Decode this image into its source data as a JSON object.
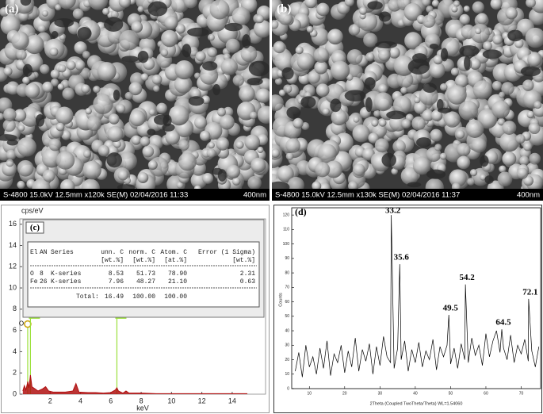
{
  "sem_images": [
    {
      "label": "(a)",
      "info": "S-4800 15.0kV 12.5mm x120k SE(M) 02/04/2016 11:33",
      "scale": "400nm"
    },
    {
      "label": "(b)",
      "info": "S-4800 15.0kV 12.5mm x130k SE(M) 02/04/2016 11:37",
      "scale": "400nm"
    }
  ],
  "chart_data": [
    {
      "type": "area",
      "panel_label": "(c)",
      "ylabel": "cps/eV",
      "xlabel": "keV",
      "color": "#b01010",
      "x": [
        0.2,
        0.3,
        0.4,
        0.5,
        0.52,
        0.6,
        0.7,
        0.8,
        1.0,
        1.2,
        1.5,
        1.7,
        1.9,
        2.2,
        2.5,
        3.0,
        3.5,
        3.7,
        3.9,
        4.5,
        5,
        5.5,
        6,
        6.3,
        6.4,
        6.5,
        6.8,
        7.0,
        7.2,
        8,
        9,
        10,
        11,
        12,
        13,
        14,
        15
      ],
      "values": [
        0.3,
        0.8,
        0.4,
        1.0,
        1.2,
        0.6,
        1.8,
        0.7,
        0.5,
        0.3,
        0.5,
        0.7,
        0.3,
        0.2,
        0.2,
        0.2,
        0.3,
        1.0,
        0.2,
        0.15,
        0.15,
        0.1,
        0.15,
        0.4,
        0.6,
        0.3,
        0.1,
        0.3,
        0.1,
        0.1,
        0.05,
        0.05,
        0.05,
        0.05,
        0.05,
        0.05,
        0.05
      ],
      "xlim": [
        0,
        16.2
      ],
      "ylim": [
        0,
        16.5
      ],
      "xticks": [
        2,
        4,
        6,
        8,
        10,
        12,
        14
      ],
      "yticks": [
        0,
        2,
        4,
        6,
        8,
        10,
        12,
        14,
        16
      ],
      "element_markers": [
        {
          "label": "O",
          "x": 0.52,
          "y": 6.6
        },
        {
          "label": "Fe",
          "x": 0.7,
          "y": 7.4
        },
        {
          "label": "Fe",
          "x": 6.4,
          "y": 7.4
        }
      ],
      "table": {
        "header": [
          "El",
          "AN",
          "Series",
          "unn. C",
          "norm. C",
          "Atom. C",
          "Error (1 Sigma)"
        ],
        "units": [
          "[wt.%]",
          "[wt.%]",
          "[at.%]",
          "[wt.%]"
        ],
        "rows": [
          [
            "O",
            "8",
            "K-series",
            "8.53",
            "51.73",
            "78.90",
            "2.31"
          ],
          [
            "Fe",
            "26",
            "K-series",
            "7.96",
            "48.27",
            "21.10",
            "0.63"
          ]
        ],
        "total": [
          "Total:",
          "16.49",
          "100.00",
          "100.00"
        ]
      }
    },
    {
      "type": "line",
      "panel_label": "(d)",
      "ylabel": "Counts",
      "xlabel": "2Theta (Coupled TwoTheta/Theta) WL=1.54060",
      "color": "#000000",
      "x": [
        6,
        7,
        8,
        9,
        10,
        11,
        12,
        13,
        14,
        15,
        16,
        17,
        18,
        19,
        20,
        21,
        22,
        23,
        24,
        25,
        26,
        27,
        28,
        29,
        30,
        31,
        32,
        33,
        33.2,
        34,
        35,
        35.6,
        36,
        37,
        38,
        39,
        40,
        41,
        42,
        43,
        44,
        45,
        46,
        47,
        48,
        49,
        49.5,
        50,
        51,
        52,
        53,
        54,
        54.2,
        55,
        56,
        57,
        58,
        59,
        60,
        61,
        62,
        63,
        64,
        64.5,
        65,
        66,
        67,
        68,
        69,
        70,
        71,
        72,
        72.1,
        73,
        74,
        75
      ],
      "values": [
        12,
        25,
        8,
        30,
        15,
        22,
        10,
        28,
        14,
        33,
        9,
        24,
        18,
        30,
        11,
        26,
        15,
        35,
        12,
        27,
        19,
        31,
        10,
        29,
        16,
        36,
        22,
        18,
        120,
        14,
        28,
        86,
        20,
        33,
        12,
        27,
        18,
        32,
        15,
        26,
        20,
        34,
        13,
        29,
        22,
        30,
        51,
        17,
        28,
        14,
        31,
        20,
        72,
        18,
        35,
        23,
        30,
        16,
        38,
        22,
        33,
        40,
        25,
        41,
        28,
        20,
        37,
        18,
        30,
        24,
        34,
        19,
        62,
        26,
        15,
        29
      ],
      "peak_labels": [
        33.2,
        35.6,
        49.5,
        54.2,
        64.5,
        72.1
      ],
      "xlim": [
        5,
        75.5
      ],
      "ylim": [
        0,
        125
      ],
      "xticks": [
        10,
        20,
        30,
        40,
        50,
        60,
        70
      ],
      "yticks": [
        0,
        10,
        20,
        30,
        40,
        50,
        60,
        70,
        80,
        90,
        100,
        110,
        120
      ]
    }
  ]
}
